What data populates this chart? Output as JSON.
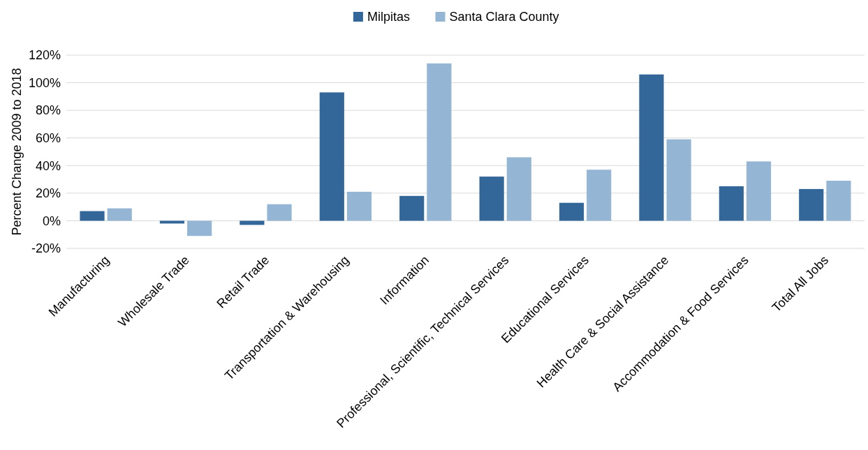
{
  "chart_data": {
    "type": "bar",
    "ylabel": "Percent Change 2009 to 2018",
    "categories": [
      "Manufacturing",
      "Wholesale Trade",
      "Retail Trade",
      "Transportation & Warehousing",
      "Information",
      "Professional, Scientific, Technical Services",
      "Educational Services",
      "Health Care & Social Assistance",
      "Accommodation & Food Services",
      "Total All Jobs"
    ],
    "series": [
      {
        "name": "Milpitas",
        "color": "#336699",
        "values": [
          7,
          -2,
          -3,
          93,
          18,
          32,
          13,
          106,
          25,
          23
        ]
      },
      {
        "name": "Santa Clara County",
        "color": "#94b6d4",
        "values": [
          9,
          -11,
          12,
          21,
          114,
          46,
          37,
          59,
          43,
          29
        ]
      }
    ],
    "ylim": [
      -20,
      120
    ],
    "yticks": [
      {
        "value": -20,
        "label": "-20%"
      },
      {
        "value": 0,
        "label": "0%"
      },
      {
        "value": 20,
        "label": "20%"
      },
      {
        "value": 40,
        "label": "40%"
      },
      {
        "value": 60,
        "label": "60%"
      },
      {
        "value": 80,
        "label": "80%"
      },
      {
        "value": 100,
        "label": "100%"
      },
      {
        "value": 120,
        "label": "120%"
      }
    ],
    "grid": "y",
    "legend": "top"
  }
}
